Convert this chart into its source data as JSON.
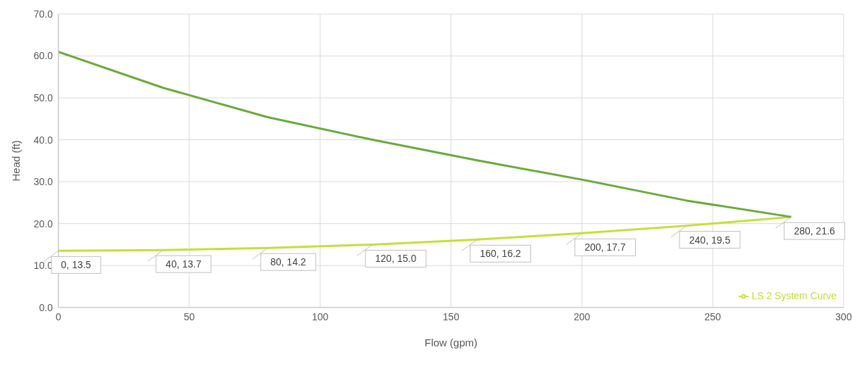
{
  "chart_data": {
    "type": "line",
    "xlabel": "Flow (gpm)",
    "ylabel": "Head (ft)",
    "xlim": [
      0,
      300
    ],
    "xticks": [
      0,
      50,
      100,
      150,
      200,
      250,
      300
    ],
    "ylim": [
      0,
      70
    ],
    "yticks": [
      {
        "value": 0,
        "label": "0.0"
      },
      {
        "value": 10,
        "label": "10.0"
      },
      {
        "value": 20,
        "label": "20.0"
      },
      {
        "value": 30,
        "label": "30.0"
      },
      {
        "value": 40,
        "label": "40.0"
      },
      {
        "value": 50,
        "label": "50.0"
      },
      {
        "value": 60,
        "label": "60.0"
      },
      {
        "value": 70,
        "label": "70.0"
      }
    ],
    "grid": true,
    "legend": "bottom right",
    "marker": "none",
    "line_style": "solid",
    "series": [
      {
        "name": "LS 2 System Curve",
        "color": "#c5de3a",
        "x": [
          0,
          40,
          80,
          120,
          160,
          200,
          240,
          280
        ],
        "values": [
          13.5,
          13.7,
          14.2,
          15.0,
          16.2,
          17.7,
          19.5,
          21.6
        ],
        "value_labels": [
          "0, 13.5",
          "40, 13.7",
          "80, 14.2",
          "120, 15.0",
          "160, 16.2",
          "200, 17.7",
          "240, 19.5",
          "280, 21.6"
        ]
      },
      {
        "color": "#6aaa3a",
        "x": [
          0,
          40,
          80,
          120,
          160,
          200,
          240,
          280
        ],
        "values": [
          61.0,
          52.4,
          45.4,
          40.0,
          35.1,
          30.5,
          25.5,
          21.6
        ]
      }
    ]
  }
}
